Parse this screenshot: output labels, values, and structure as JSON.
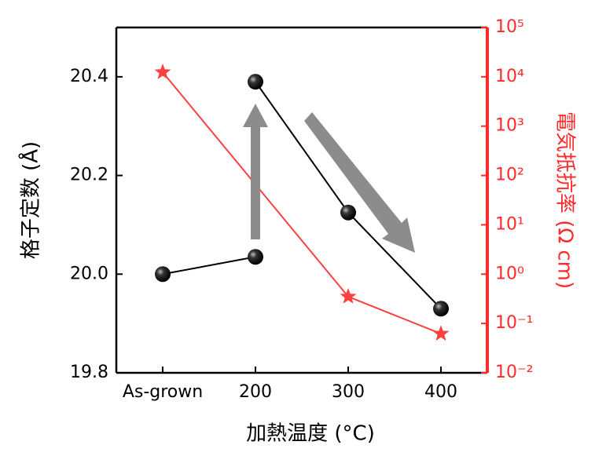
{
  "chart_data": {
    "type": "line",
    "xlabel": "加熱温度 (°C)",
    "ylabel": "格子定数 (Å)",
    "y2label": "電気抵抗率 (Ω cm)",
    "categories": [
      "As-grown",
      "200",
      "300",
      "400"
    ],
    "ylim": [
      19.8,
      20.5
    ],
    "yticks": [
      19.8,
      {
        "value": 20,
        "label": "20.0"
      },
      20.2,
      20.4
    ],
    "y2lim": [
      0.01,
      100000
    ],
    "y2scale": "log",
    "y2ticks": [
      {
        "value": 0.01,
        "label": "10⁻²"
      },
      {
        "value": 0.1,
        "label": "10⁻¹"
      },
      {
        "value": 1,
        "label": "10⁰"
      },
      {
        "value": 10,
        "label": "10¹"
      },
      {
        "value": 100,
        "label": "10²"
      },
      {
        "value": 1000,
        "label": "10³"
      },
      {
        "value": 10000,
        "label": "10⁴"
      },
      {
        "value": 100000,
        "label": "10⁵"
      }
    ],
    "y2color": "#ff2a2a",
    "series": [
      {
        "color": "#000000",
        "marker": "sphere",
        "values": [
          20.0,
          20.035,
          null,
          null
        ]
      },
      {
        "color": "#000000",
        "marker": "sphere",
        "values": [
          null,
          20.39,
          20.125,
          19.93
        ]
      },
      {
        "color": "#ff4040",
        "marker": "star",
        "axis": "y2",
        "connect_gaps": true,
        "values": [
          12400,
          null,
          0.35,
          0.062
        ]
      }
    ]
  }
}
